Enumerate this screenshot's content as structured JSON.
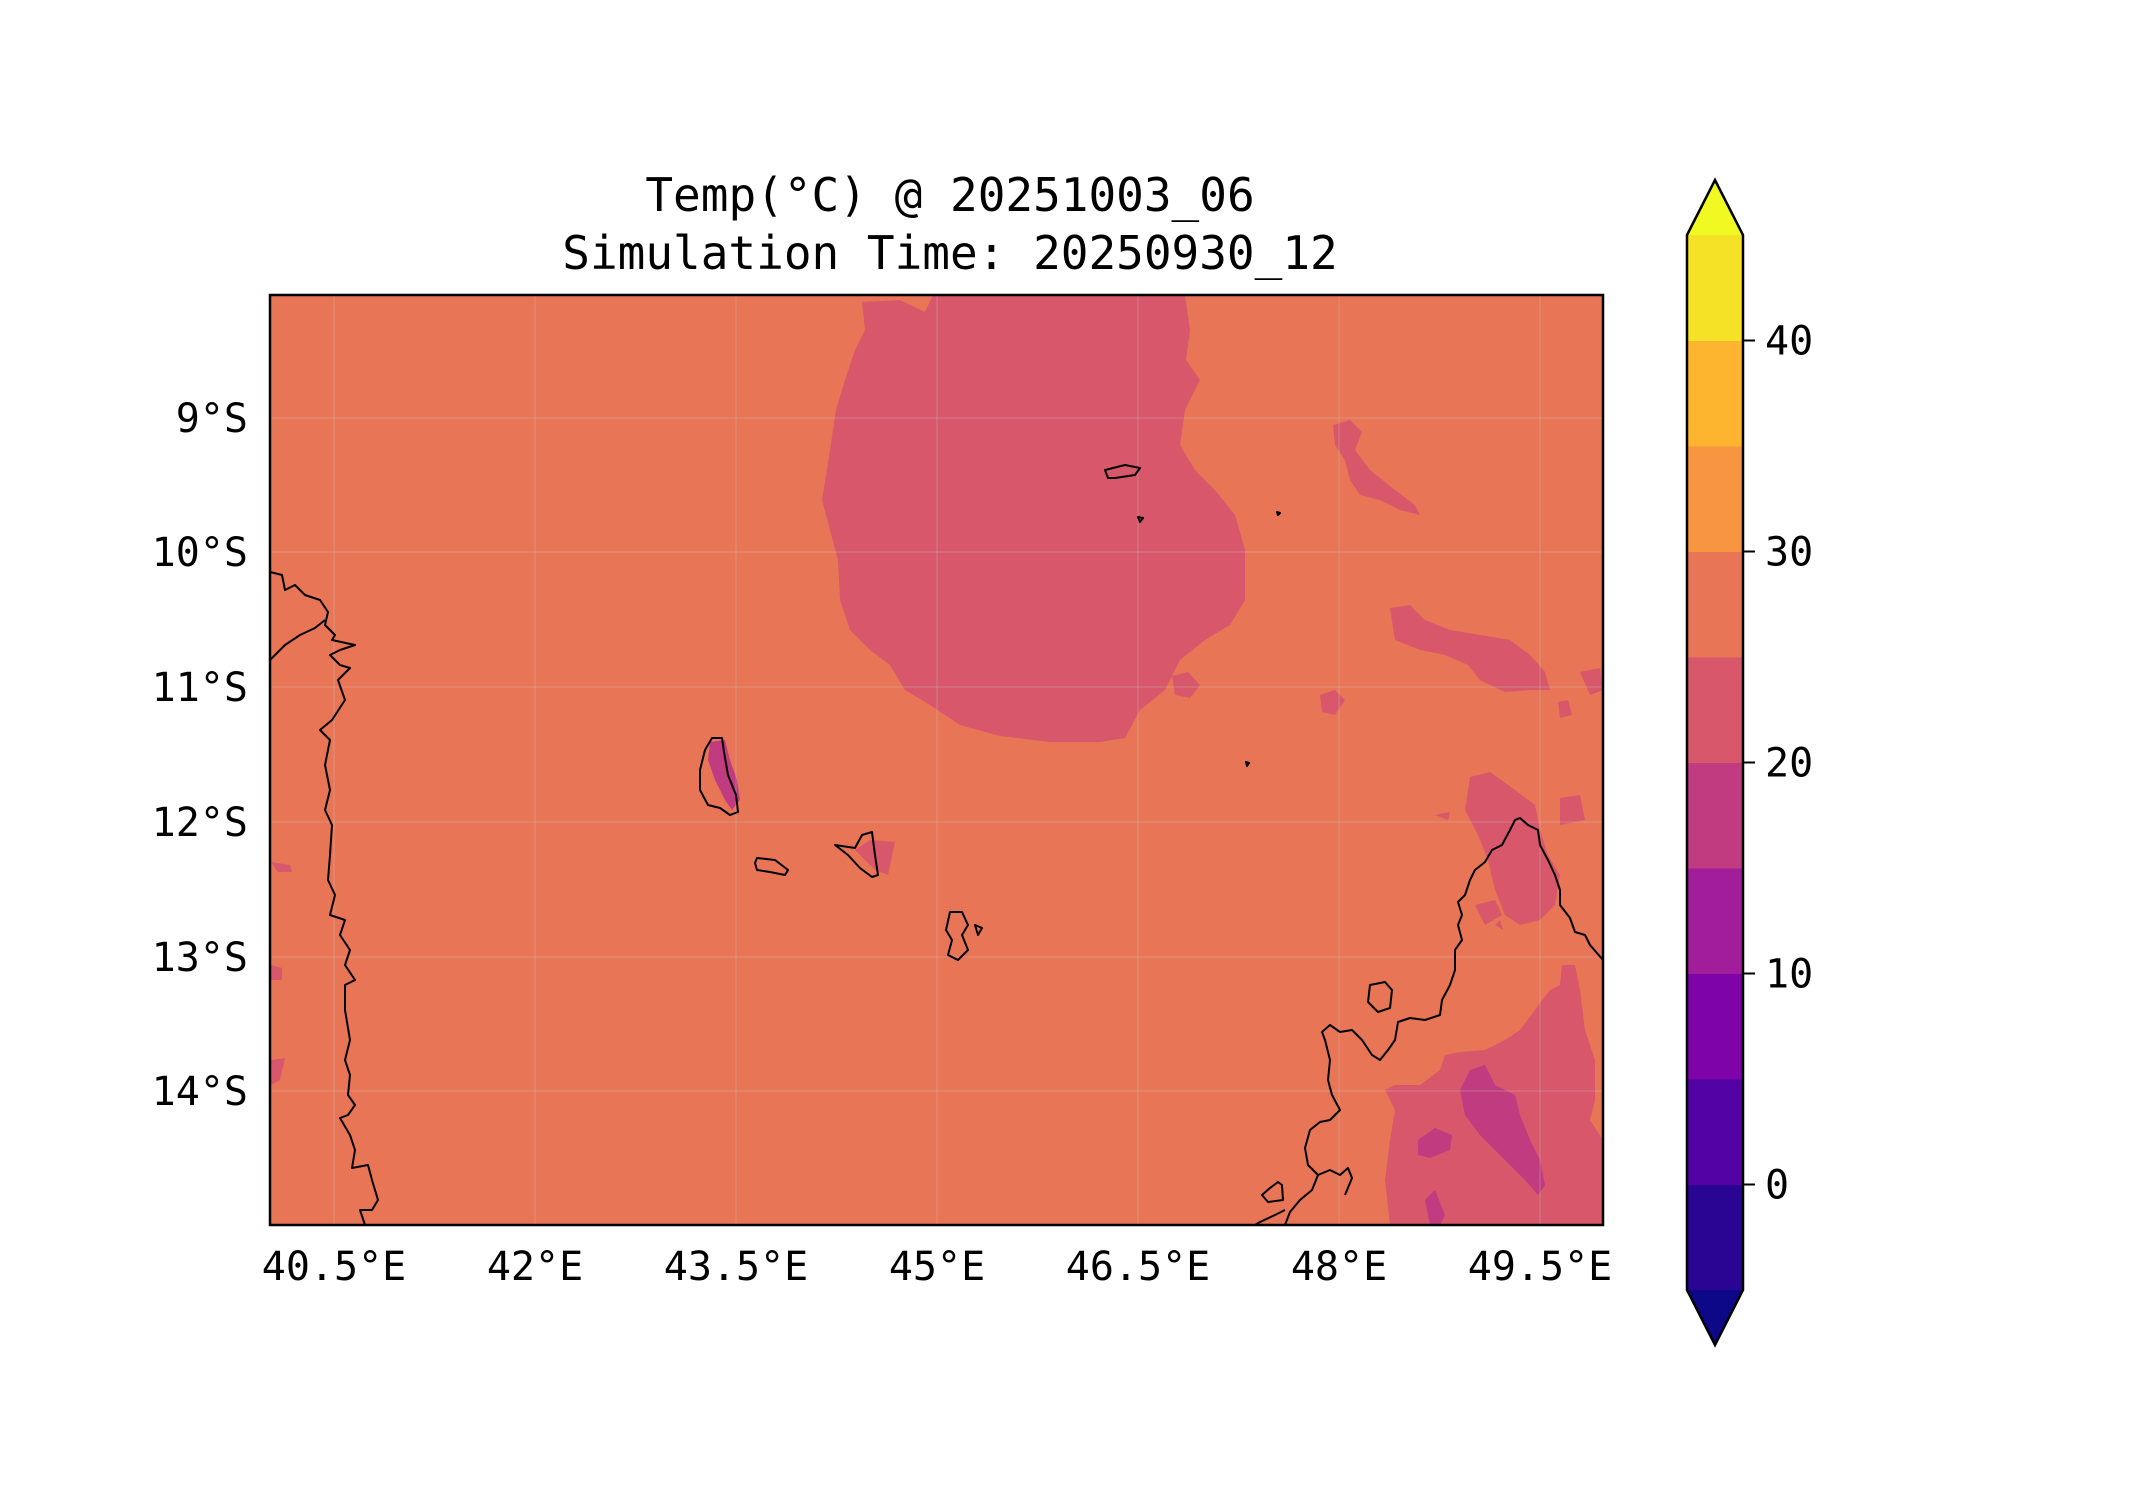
{
  "title": {
    "line1": "Temp(°C) @ 20251003_06",
    "line2": "Simulation Time: 20250930_12"
  },
  "map": {
    "lon_range": [
      40.0,
      49.95
    ],
    "lat_range": [
      -14.95,
      -8.05
    ],
    "x_ticks": [
      {
        "value": 40.5,
        "label": "40.5°E"
      },
      {
        "value": 42.0,
        "label": "42°E"
      },
      {
        "value": 43.5,
        "label": "43.5°E"
      },
      {
        "value": 45.0,
        "label": "45°E"
      },
      {
        "value": 46.5,
        "label": "46.5°E"
      },
      {
        "value": 48.0,
        "label": "48°E"
      },
      {
        "value": 49.5,
        "label": "49.5°E"
      }
    ],
    "y_ticks": [
      {
        "value": -9,
        "label": "9°S"
      },
      {
        "value": -10,
        "label": "10°S"
      },
      {
        "value": -11,
        "label": "11°S"
      },
      {
        "value": -12,
        "label": "12°S"
      },
      {
        "value": -13,
        "label": "13°S"
      },
      {
        "value": -14,
        "label": "14°S"
      }
    ],
    "gridlines": true,
    "background_band": "25-30 °C",
    "dominant_fill": "#e97557"
  },
  "colorbar": {
    "bounds": [
      -5,
      0,
      5,
      10,
      15,
      20,
      25,
      30,
      35,
      40,
      45
    ],
    "colors": [
      "#2a0593",
      "#5302a3",
      "#7e03a8",
      "#a21d9a",
      "#c03b80",
      "#d8576b",
      "#e97557",
      "#f89540",
      "#fdb42f",
      "#f5e126"
    ],
    "under_color": "#0d0887",
    "over_color": "#f0f921",
    "extend": "both",
    "ticks": [
      {
        "value": 0,
        "label": "0"
      },
      {
        "value": 10,
        "label": "10"
      },
      {
        "value": 20,
        "label": "20"
      },
      {
        "value": 30,
        "label": "30"
      },
      {
        "value": 40,
        "label": "40"
      }
    ]
  }
}
